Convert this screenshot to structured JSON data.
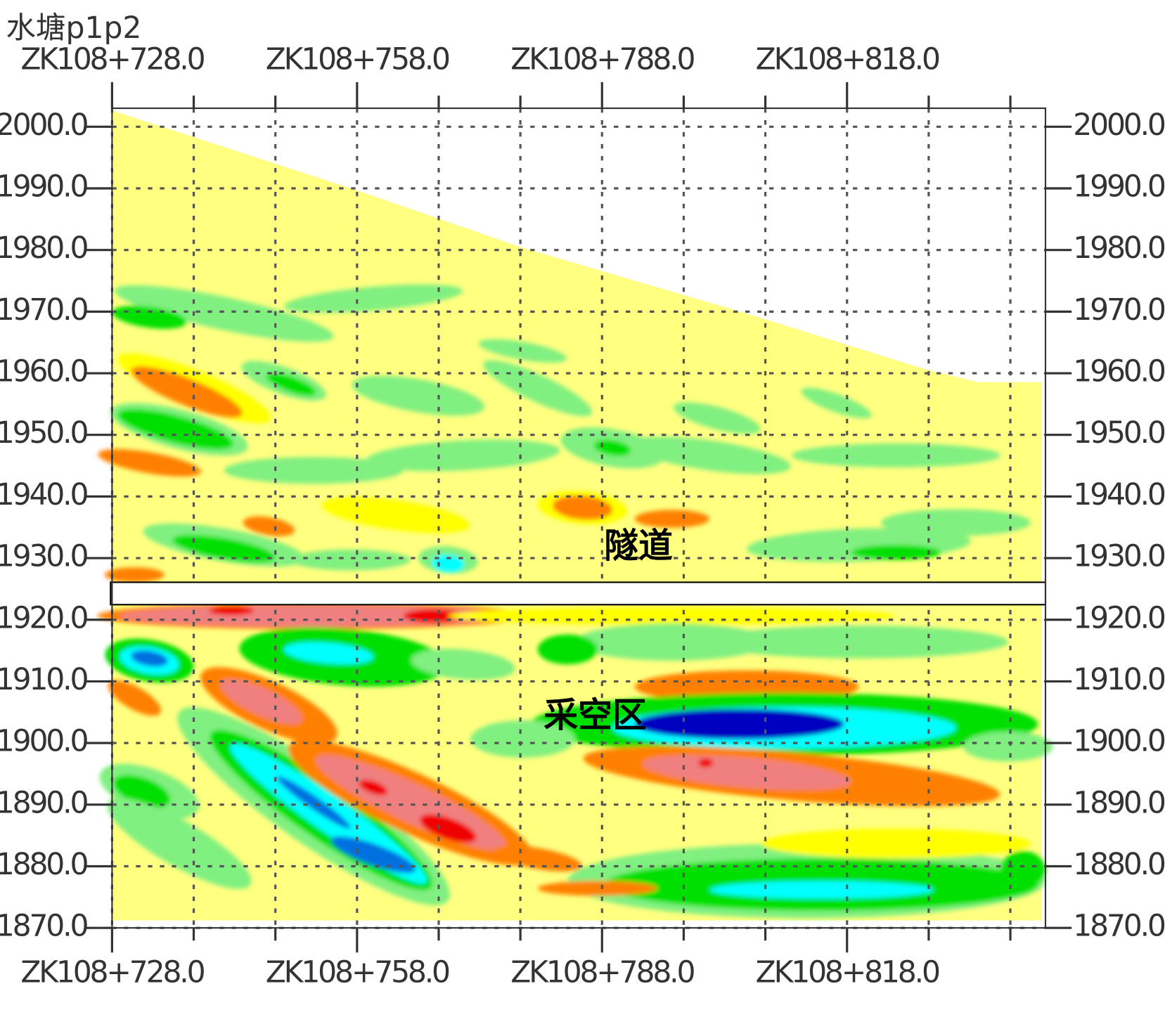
{
  "chart_data": {
    "type": "section",
    "title": "水塘p1p2",
    "xlim": [
      728,
      842.3
    ],
    "ylim": [
      1870,
      2003
    ],
    "xticks": [
      {
        "value": 728,
        "label": "ZK108+728.0"
      },
      {
        "value": 758,
        "label": "ZK108+758.0"
      },
      {
        "value": 788,
        "label": "ZK108+788.0"
      },
      {
        "value": 818,
        "label": "ZK108+818.0"
      }
    ],
    "xminor_ticks": [
      738,
      748,
      768,
      778,
      798,
      808,
      828,
      838
    ],
    "yticks": [
      {
        "value": 2000,
        "label": "2000.0"
      },
      {
        "value": 1990,
        "label": "1990.0"
      },
      {
        "value": 1980,
        "label": "1980.0"
      },
      {
        "value": 1970,
        "label": "1970.0"
      },
      {
        "value": 1960,
        "label": "1960.0"
      },
      {
        "value": 1950,
        "label": "1950.0"
      },
      {
        "value": 1940,
        "label": "1940.0"
      },
      {
        "value": 1930,
        "label": "1930.0"
      },
      {
        "value": 1920,
        "label": "1920.0"
      },
      {
        "value": 1910,
        "label": "1910.0"
      },
      {
        "value": 1900,
        "label": "1900.0"
      },
      {
        "value": 1890,
        "label": "1890.0"
      },
      {
        "value": 1880,
        "label": "1880.0"
      },
      {
        "value": 1870,
        "label": "1870.0"
      }
    ],
    "grid": true,
    "annotations": [
      "隧道",
      "采空区"
    ]
  }
}
